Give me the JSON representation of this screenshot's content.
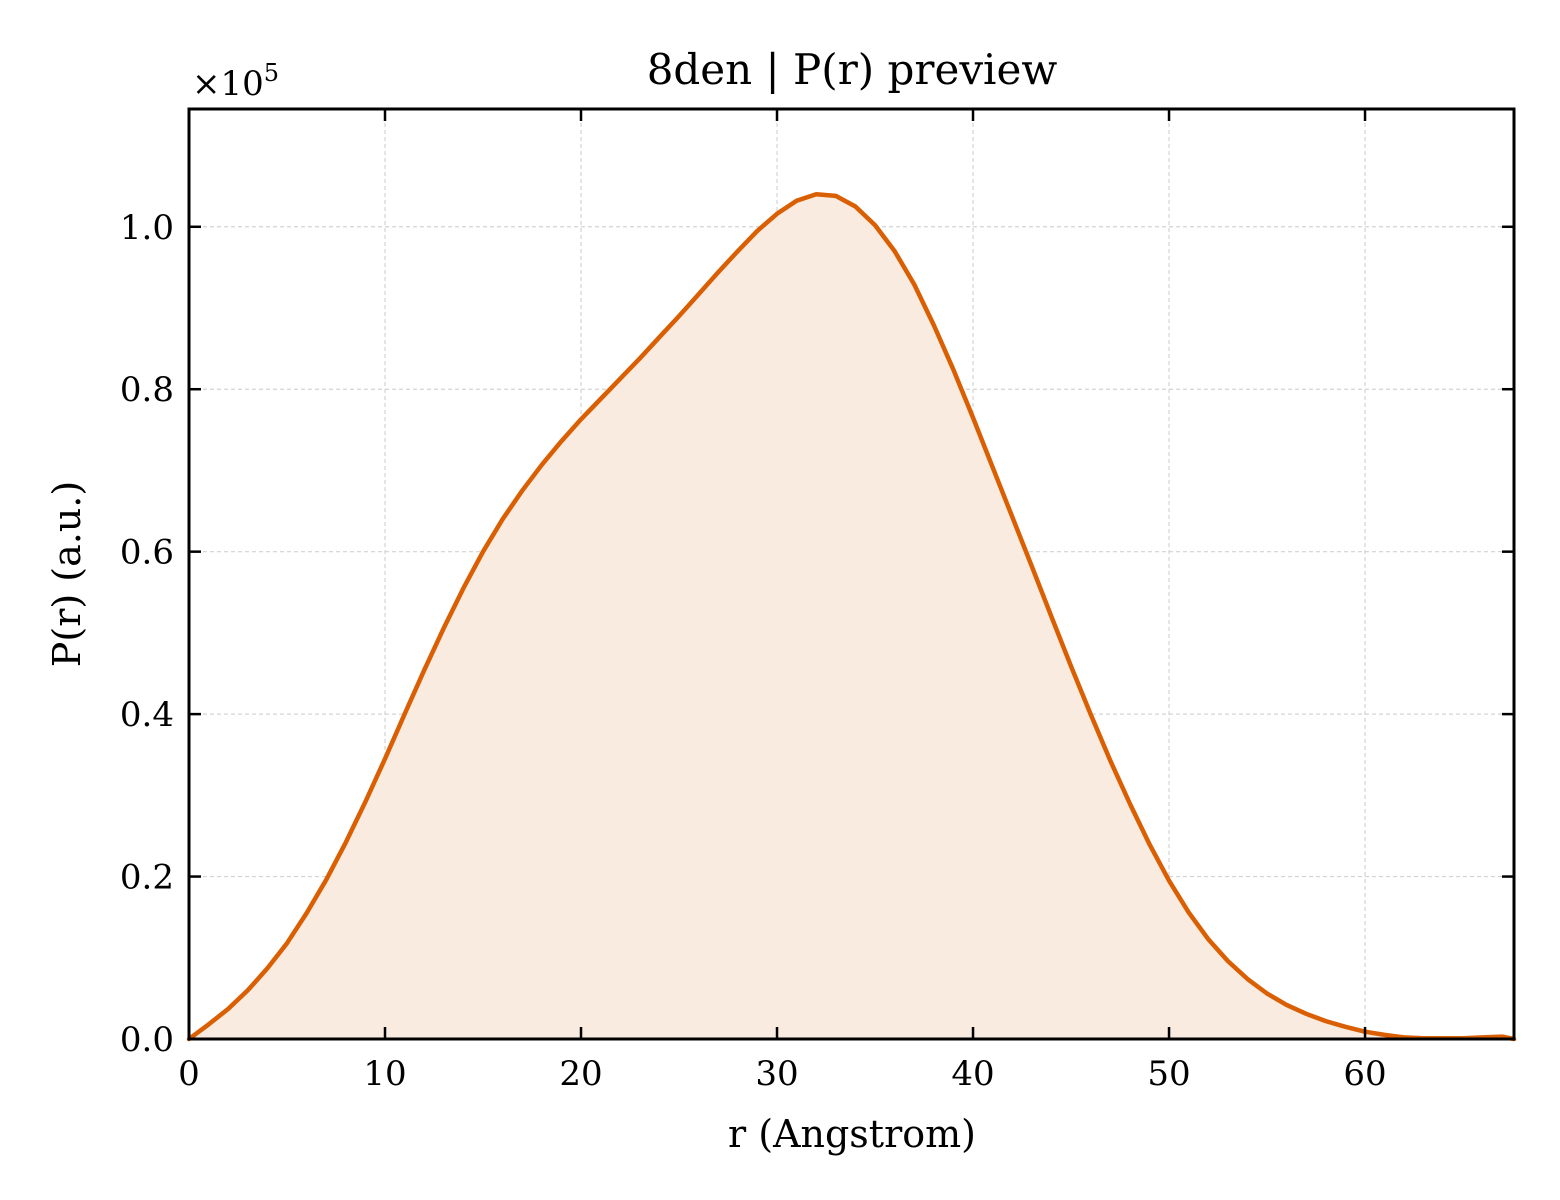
{
  "chart_data": {
    "type": "area",
    "title": "8den | P(r) preview",
    "xlabel": "r (Angstrom)",
    "ylabel": "P(r) (a.u.)",
    "y_multiplier_text": "×10",
    "y_multiplier_exponent": "5",
    "xlim": [
      0,
      67.6
    ],
    "ylim": [
      0,
      1.145
    ],
    "x_ticks": [
      0,
      10,
      20,
      30,
      40,
      50,
      60
    ],
    "x_tick_labels": [
      "0",
      "10",
      "20",
      "30",
      "40",
      "50",
      "60"
    ],
    "y_ticks": [
      0.0,
      0.2,
      0.4,
      0.6,
      0.8,
      1.0
    ],
    "y_tick_labels": [
      "0.0",
      "0.2",
      "0.4",
      "0.6",
      "0.8",
      "1.0"
    ],
    "grid": true,
    "line_color": "#d95f02",
    "fill_color": "#f9ebe0",
    "series": [
      {
        "x": [
          0,
          1,
          2,
          3,
          4,
          5,
          6,
          7,
          8,
          9,
          10,
          11,
          12,
          13,
          14,
          15,
          16,
          17,
          18,
          19,
          20,
          21,
          22,
          23,
          24,
          25,
          26,
          27,
          28,
          29,
          30,
          31,
          32,
          33,
          34,
          35,
          36,
          37,
          38,
          39,
          40,
          41,
          42,
          43,
          44,
          45,
          46,
          47,
          48,
          49,
          50,
          51,
          52,
          53,
          54,
          55,
          56,
          57,
          58,
          59,
          60,
          61,
          62,
          63,
          64,
          65,
          66,
          67,
          67.6
        ],
        "y": [
          0.0,
          0.018,
          0.037,
          0.06,
          0.087,
          0.118,
          0.155,
          0.196,
          0.242,
          0.292,
          0.345,
          0.4,
          0.454,
          0.506,
          0.555,
          0.6,
          0.64,
          0.675,
          0.707,
          0.736,
          0.763,
          0.788,
          0.813,
          0.838,
          0.864,
          0.89,
          0.917,
          0.944,
          0.97,
          0.995,
          1.016,
          1.032,
          1.04,
          1.038,
          1.025,
          1.002,
          0.97,
          0.929,
          0.879,
          0.824,
          0.765,
          0.704,
          0.643,
          0.582,
          0.52,
          0.459,
          0.4,
          0.343,
          0.29,
          0.24,
          0.195,
          0.156,
          0.123,
          0.096,
          0.074,
          0.056,
          0.042,
          0.031,
          0.022,
          0.015,
          0.009,
          0.005,
          0.002,
          0.001,
          0.001,
          0.001,
          0.002,
          0.003,
          0.0
        ]
      }
    ]
  }
}
